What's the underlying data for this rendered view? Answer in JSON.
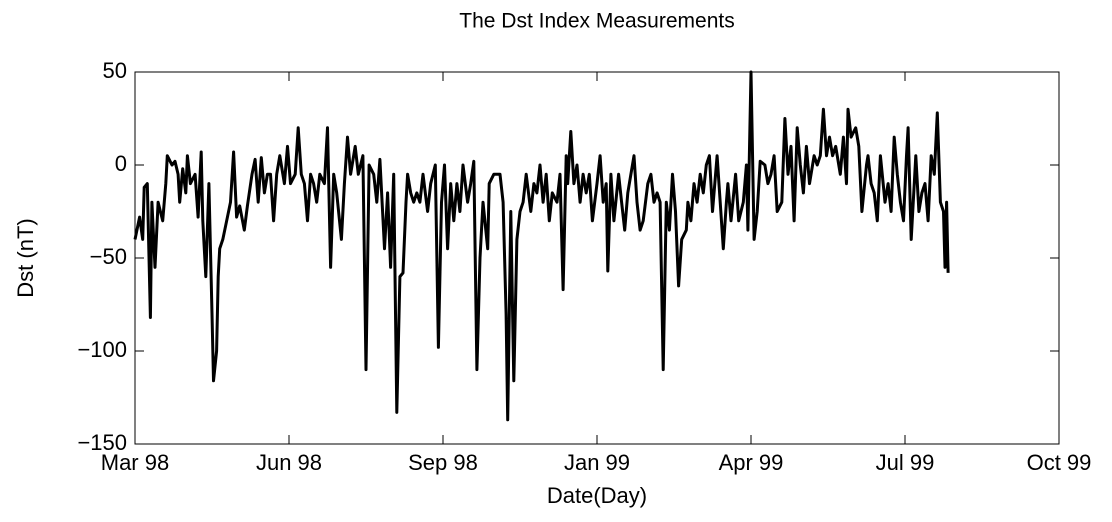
{
  "chart_data": {
    "type": "line",
    "title": "The Dst Index Measurements",
    "x_label": "Date(Day)",
    "y_label": "Dst (nT)",
    "x": [
      0,
      3,
      5,
      6,
      8,
      10,
      11,
      13,
      15,
      18,
      20,
      21,
      24,
      26,
      28,
      29,
      31,
      33,
      34,
      36,
      39,
      41,
      43,
      44,
      46,
      48,
      50,
      51,
      53,
      54,
      55,
      57,
      59,
      62,
      64,
      66,
      68,
      71,
      73,
      76,
      78,
      80,
      82,
      84,
      86,
      88,
      90,
      92,
      94,
      97,
      99,
      101,
      104,
      106,
      108,
      110,
      112,
      114,
      116,
      118,
      120,
      123,
      125,
      127,
      129,
      131,
      134,
      136,
      138,
      140,
      143,
      145,
      148,
      150,
      152,
      155,
      157,
      159,
      162,
      164,
      166,
      168,
      170,
      172,
      174,
      176,
      177,
      179,
      181,
      183,
      185,
      187,
      190,
      192,
      195,
      197,
      199,
      201,
      203,
      205,
      207,
      209,
      211,
      213,
      216,
      218,
      220,
      222,
      224,
      226,
      229,
      230,
      233,
      235,
      237,
      239,
      241,
      242,
      244,
      246,
      248,
      250,
      252,
      254,
      257,
      259,
      261,
      263,
      265,
      267,
      269,
      271,
      274,
      276,
      278,
      280,
      281,
      283,
      285,
      287,
      289,
      291,
      293,
      295,
      297,
      300,
      302,
      304,
      306,
      307,
      309,
      311,
      314,
      316,
      318,
      320,
      322,
      324,
      326,
      328,
      330,
      333,
      335,
      337,
      339,
      341,
      343,
      345,
      347,
      349,
      351,
      353,
      355,
      358,
      359,
      361,
      363,
      365,
      367,
      369,
      371,
      373,
      375,
      378,
      380,
      382,
      384,
      385,
      387,
      390,
      392,
      395,
      397,
      398,
      400,
      402,
      404,
      406,
      409,
      411,
      413,
      415,
      417,
      420,
      422,
      424,
      426,
      428,
      430,
      432,
      434,
      436,
      438,
      441,
      443,
      445,
      447,
      449,
      451,
      453,
      455,
      458,
      460,
      462,
      463,
      465,
      468,
      470,
      472,
      475,
      476,
      478,
      480,
      482,
      484,
      487,
      489,
      491,
      493,
      495,
      497,
      499,
      501,
      502,
      504,
      507,
      509,
      511,
      513,
      515,
      517,
      519,
      521,
      523,
      525,
      526,
      527,
      528
    ],
    "series": [
      {
        "color": "#000000",
        "values": [
          -40,
          -28,
          -40,
          -12,
          -10,
          -82,
          -20,
          -55,
          -20,
          -30,
          -10,
          5,
          0,
          2,
          -5,
          -20,
          -2,
          -15,
          5,
          -10,
          -5,
          -28,
          7,
          -30,
          -60,
          -10,
          -80,
          -116,
          -100,
          -60,
          -45,
          -40,
          -32,
          -20,
          7,
          -28,
          -22,
          -35,
          -22,
          -5,
          3,
          -20,
          4,
          -15,
          -5,
          -5,
          -30,
          -5,
          5,
          -10,
          10,
          -10,
          -5,
          20,
          -5,
          -10,
          -30,
          -5,
          -10,
          -20,
          -5,
          -10,
          20,
          -55,
          -5,
          -15,
          -40,
          -10,
          15,
          -5,
          10,
          -5,
          5,
          -110,
          0,
          -5,
          -20,
          3,
          -45,
          -15,
          -55,
          -5,
          -133,
          -60,
          -58,
          -20,
          -5,
          -15,
          -20,
          -15,
          -20,
          -5,
          -25,
          -10,
          0,
          -98,
          -20,
          0,
          -45,
          -10,
          -30,
          -10,
          -25,
          0,
          -20,
          -10,
          2,
          -110,
          -50,
          -20,
          -45,
          -10,
          -5,
          -5,
          -5,
          -20,
          -80,
          -137,
          -25,
          -116,
          -40,
          -25,
          -20,
          -5,
          -25,
          -10,
          -15,
          0,
          -20,
          -5,
          -30,
          -15,
          -20,
          -5,
          -67,
          5,
          -10,
          18,
          -10,
          0,
          -20,
          -5,
          -15,
          -5,
          -30,
          -10,
          5,
          -20,
          -10,
          -57,
          -5,
          -30,
          -5,
          -20,
          -35,
          -15,
          -5,
          5,
          -20,
          -35,
          -30,
          -10,
          -5,
          -20,
          -15,
          -20,
          -110,
          -20,
          -35,
          -5,
          -25,
          -65,
          -40,
          -35,
          -20,
          -30,
          -10,
          -20,
          -5,
          -15,
          0,
          5,
          -25,
          5,
          -20,
          -45,
          -20,
          -10,
          -30,
          -5,
          -30,
          -20,
          0,
          -35,
          50,
          -40,
          -25,
          2,
          0,
          -10,
          -5,
          5,
          -25,
          -20,
          25,
          -5,
          10,
          -30,
          20,
          0,
          -15,
          10,
          -10,
          5,
          0,
          5,
          30,
          5,
          15,
          5,
          10,
          -5,
          15,
          -10,
          30,
          15,
          20,
          10,
          -25,
          0,
          5,
          -10,
          -15,
          -30,
          5,
          -20,
          -10,
          -25,
          15,
          -5,
          -20,
          -30,
          5,
          20,
          -40,
          5,
          -25,
          -15,
          -10,
          -30,
          5,
          -5,
          28,
          -20,
          -25,
          -55,
          -20,
          -58
        ]
      }
    ],
    "xlim": [
      0,
      600
    ],
    "xticks": [
      {
        "value": 0,
        "label": "Mar 98"
      },
      {
        "value": 100,
        "label": "Jun 98"
      },
      {
        "value": 200,
        "label": "Sep 98"
      },
      {
        "value": 300,
        "label": "Jan 99"
      },
      {
        "value": 400,
        "label": "Apr 99"
      },
      {
        "value": 500,
        "label": "Jul 99"
      },
      {
        "value": 600,
        "label": "Oct 99"
      }
    ],
    "ylim": [
      -150,
      50
    ],
    "yticks": [
      {
        "value": -150,
        "label": "−150"
      },
      {
        "value": -100,
        "label": "−100"
      },
      {
        "value": -50,
        "label": "−50"
      },
      0,
      50
    ],
    "grid": false
  }
}
